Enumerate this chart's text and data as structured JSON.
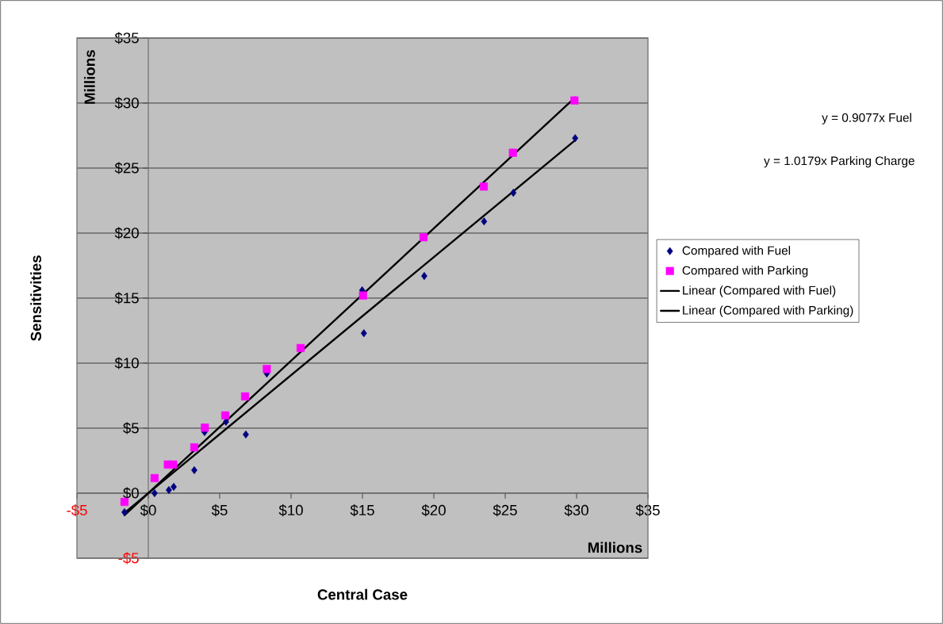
{
  "chart_data": {
    "type": "scatter",
    "xlabel": "Central Case",
    "ylabel": "Sensitivities",
    "annotations": [
      "y = 0.9077x Fuel",
      "y = 1.0179x Parking Charge",
      "Millions",
      "Millions"
    ],
    "series": [
      {
        "name": "Compared with Fuel",
        "marker": "diamond",
        "color": "#000080",
        "x": [
          -1.67,
          0.44,
          1.44,
          1.78,
          3.22,
          3.94,
          5.44,
          6.83,
          8.3,
          14.98,
          15.1,
          19.33,
          23.52,
          25.57,
          29.9
        ],
        "values": [
          -1.46,
          0.0,
          0.24,
          0.49,
          1.77,
          4.7,
          5.49,
          4.51,
          9.2,
          15.6,
          12.3,
          16.7,
          20.9,
          23.1,
          27.3
        ]
      },
      {
        "name": "Compared with Parking",
        "marker": "square",
        "color": "#ff00ff",
        "x": [
          -1.67,
          0.44,
          1.37,
          1.74,
          3.22,
          3.96,
          5.39,
          6.78,
          8.3,
          10.67,
          15.04,
          19.28,
          23.5,
          25.54,
          29.85
        ],
        "values": [
          -0.67,
          1.16,
          2.2,
          2.2,
          3.52,
          5.04,
          5.98,
          7.44,
          9.55,
          11.16,
          15.2,
          19.68,
          23.58,
          26.18,
          30.2
        ]
      },
      {
        "name": "Linear (Compared with Fuel)",
        "type": "line",
        "marker": "none",
        "color": "#000000",
        "x": [
          -1.67,
          29.9
        ],
        "values": [
          -1.52,
          27.14
        ]
      },
      {
        "name": "Linear (Compared with Parking)",
        "type": "line",
        "marker": "none",
        "color": "#000000",
        "x": [
          -1.67,
          29.9
        ],
        "values": [
          -1.7,
          30.44
        ]
      }
    ],
    "xlim": [
      -5,
      35
    ],
    "ylim": [
      -5,
      35
    ],
    "xticks": [
      {
        "value": -5,
        "label": "-$5"
      },
      {
        "value": 0,
        "label": "$0"
      },
      {
        "value": 5,
        "label": "$5"
      },
      {
        "value": 10,
        "label": "$10"
      },
      {
        "value": 15,
        "label": "$15"
      },
      {
        "value": 20,
        "label": "$20"
      },
      {
        "value": 25,
        "label": "$25"
      },
      {
        "value": 30,
        "label": "$30"
      },
      {
        "value": 35,
        "label": "$35"
      }
    ],
    "yticks": [
      {
        "value": -5,
        "label": "-$5"
      },
      {
        "value": 0,
        "label": "$0"
      },
      {
        "value": 5,
        "label": "$5"
      },
      {
        "value": 10,
        "label": "$10"
      },
      {
        "value": 15,
        "label": "$15"
      },
      {
        "value": 20,
        "label": "$20"
      },
      {
        "value": 25,
        "label": "$25"
      },
      {
        "value": 30,
        "label": "$30"
      },
      {
        "value": 35,
        "label": "$35"
      }
    ],
    "grid": "y",
    "legend": "right"
  }
}
